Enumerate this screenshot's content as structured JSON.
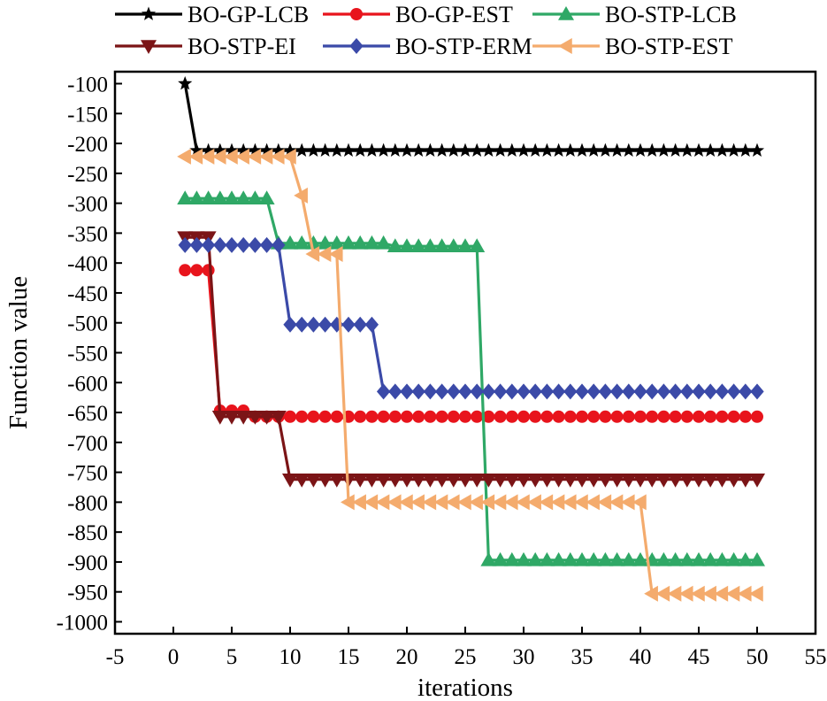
{
  "chart_data": {
    "type": "line",
    "xlabel": "iterations",
    "ylabel": "Function value",
    "xlim": [
      -5,
      55
    ],
    "ylim": [
      -1020,
      -80
    ],
    "xticks": [
      -5,
      0,
      5,
      10,
      15,
      20,
      25,
      30,
      35,
      40,
      45,
      50,
      55
    ],
    "yticks": [
      -100,
      -150,
      -200,
      -250,
      -300,
      -350,
      -400,
      -450,
      -500,
      -550,
      -600,
      -650,
      -700,
      -750,
      -800,
      -850,
      -900,
      -950,
      -1000
    ],
    "grid": false,
    "legend_position": "top",
    "series": [
      {
        "name": "BO-GP-LCB",
        "color": "#000000",
        "marker": "star",
        "y": [
          -100,
          -212,
          -212,
          -212,
          -212,
          -212,
          -212,
          -212,
          -212,
          -212,
          -212,
          -212,
          -212,
          -212,
          -212,
          -212,
          -212,
          -212,
          -212,
          -212,
          -212,
          -212,
          -212,
          -212,
          -212,
          -212,
          -212,
          -212,
          -212,
          -212,
          -212,
          -212,
          -212,
          -212,
          -212,
          -212,
          -212,
          -212,
          -212,
          -212,
          -212,
          -212,
          -212,
          -212,
          -212,
          -212,
          -212,
          -212,
          -212,
          -212
        ]
      },
      {
        "name": "BO-GP-EST",
        "color": "#e8141c",
        "marker": "circle",
        "y": [
          -412,
          -412,
          -412,
          -647,
          -647,
          -647,
          -657,
          -657,
          -657,
          -657,
          -657,
          -657,
          -657,
          -657,
          -657,
          -657,
          -657,
          -657,
          -657,
          -657,
          -657,
          -657,
          -657,
          -657,
          -657,
          -657,
          -657,
          -657,
          -657,
          -657,
          -657,
          -657,
          -657,
          -657,
          -657,
          -657,
          -657,
          -657,
          -657,
          -657,
          -657,
          -657,
          -657,
          -657,
          -657,
          -657,
          -657,
          -657,
          -657,
          -657
        ]
      },
      {
        "name": "BO-STP-LCB",
        "color": "#2fa866",
        "marker": "triangle-up",
        "y": [
          -292,
          -292,
          -292,
          -292,
          -292,
          -292,
          -292,
          -292,
          -367,
          -367,
          -367,
          -367,
          -367,
          -367,
          -367,
          -367,
          -367,
          -367,
          -372,
          -372,
          -372,
          -372,
          -372,
          -372,
          -372,
          -372,
          -897,
          -897,
          -897,
          -897,
          -897,
          -897,
          -897,
          -897,
          -897,
          -897,
          -897,
          -897,
          -897,
          -897,
          -897,
          -897,
          -897,
          -897,
          -897,
          -897,
          -897,
          -897,
          -897,
          -897
        ]
      },
      {
        "name": "BO-STP-EI",
        "color": "#7b1416",
        "marker": "triangle-down",
        "y": [
          -357,
          -357,
          -357,
          -657,
          -657,
          -657,
          -657,
          -657,
          -657,
          -762,
          -762,
          -762,
          -762,
          -762,
          -762,
          -762,
          -762,
          -762,
          -762,
          -762,
          -762,
          -762,
          -762,
          -762,
          -762,
          -762,
          -762,
          -762,
          -762,
          -762,
          -762,
          -762,
          -762,
          -762,
          -762,
          -762,
          -762,
          -762,
          -762,
          -762,
          -762,
          -762,
          -762,
          -762,
          -762,
          -762,
          -762,
          -762,
          -762,
          -762
        ]
      },
      {
        "name": "BO-STP-ERM",
        "color": "#3b4aa8",
        "marker": "diamond",
        "y": [
          -370,
          -370,
          -370,
          -370,
          -370,
          -370,
          -370,
          -370,
          -370,
          -503,
          -503,
          -503,
          -503,
          -503,
          -503,
          -503,
          -503,
          -615,
          -615,
          -615,
          -615,
          -615,
          -615,
          -615,
          -615,
          -615,
          -615,
          -615,
          -615,
          -615,
          -615,
          -615,
          -615,
          -615,
          -615,
          -615,
          -615,
          -615,
          -615,
          -615,
          -615,
          -615,
          -615,
          -615,
          -615,
          -615,
          -615,
          -615,
          -615,
          -615
        ]
      },
      {
        "name": "BO-STP-EST",
        "color": "#f4ab6d",
        "marker": "triangle-left",
        "y": [
          -222,
          -222,
          -222,
          -222,
          -222,
          -222,
          -222,
          -222,
          -222,
          -222,
          -287,
          -385,
          -385,
          -385,
          -800,
          -800,
          -800,
          -800,
          -800,
          -800,
          -800,
          -800,
          -800,
          -800,
          -800,
          -800,
          -800,
          -800,
          -800,
          -800,
          -800,
          -800,
          -800,
          -800,
          -800,
          -800,
          -800,
          -800,
          -800,
          -800,
          -953,
          -953,
          -953,
          -953,
          -953,
          -953,
          -953,
          -953,
          -953,
          -953
        ]
      }
    ]
  }
}
